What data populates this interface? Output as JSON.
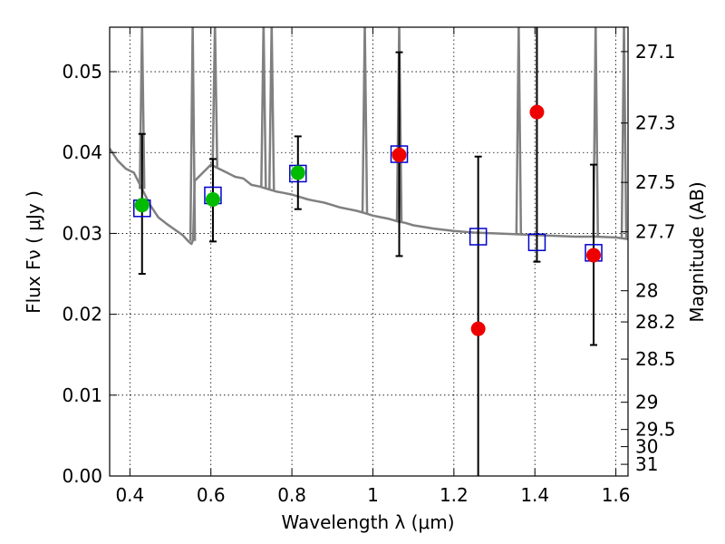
{
  "chart_data": {
    "type": "scatter",
    "xlabel": "Wavelength  λ (μm)",
    "ylabel": "Flux  Fν  ( μJy )",
    "y2label": "Magnitude (AB)",
    "xlim": [
      0.35,
      1.63
    ],
    "ylim": [
      0.0,
      0.0555
    ],
    "grid": true,
    "x_ticks": [
      0.4,
      0.6,
      0.8,
      1.0,
      1.2,
      1.4,
      1.6
    ],
    "x_tick_labels": [
      "0.4",
      "0.6",
      "0.8",
      "1",
      "1.2",
      "1.4",
      "1.6"
    ],
    "y_ticks": [
      0.0,
      0.01,
      0.02,
      0.03,
      0.04,
      0.05
    ],
    "y_tick_labels": [
      "0.00",
      "0.01",
      "0.02",
      "0.03",
      "0.04",
      "0.05"
    ],
    "y2_ticks": [
      "27.1",
      "27.3",
      "27.5",
      "27.7",
      "28",
      "28.2",
      "28.5",
      "29",
      "29.5",
      "30",
      "31"
    ],
    "colors": {
      "model": "#808080",
      "detections": "#00bb00",
      "nondetections": "#ee0000",
      "model_fluxes": "#0000cc",
      "errorbars": "#000000"
    },
    "model_spectrum": {
      "x": [
        0.35,
        0.37,
        0.39,
        0.41,
        0.43,
        0.45,
        0.47,
        0.49,
        0.51,
        0.53,
        0.545,
        0.552,
        0.556,
        0.56,
        0.58,
        0.6,
        0.62,
        0.64,
        0.66,
        0.68,
        0.7,
        0.72,
        0.74,
        0.76,
        0.78,
        0.8,
        0.82,
        0.84,
        0.86,
        0.88,
        0.9,
        0.92,
        0.94,
        0.96,
        0.98,
        1.0,
        1.02,
        1.04,
        1.06,
        1.08,
        1.1,
        1.15,
        1.2,
        1.25,
        1.3,
        1.35,
        1.4,
        1.45,
        1.5,
        1.55,
        1.6,
        1.63
      ],
      "y": [
        0.0405,
        0.039,
        0.038,
        0.0375,
        0.0355,
        0.0335,
        0.032,
        0.0312,
        0.0305,
        0.0298,
        0.029,
        0.0287,
        0.0292,
        0.0365,
        0.0375,
        0.0385,
        0.038,
        0.0375,
        0.037,
        0.0368,
        0.036,
        0.0358,
        0.0355,
        0.0352,
        0.035,
        0.0348,
        0.0345,
        0.0342,
        0.034,
        0.0338,
        0.0335,
        0.0332,
        0.033,
        0.0328,
        0.0325,
        0.0322,
        0.032,
        0.0318,
        0.0315,
        0.0313,
        0.031,
        0.0306,
        0.0303,
        0.0301,
        0.03,
        0.0299,
        0.0298,
        0.0297,
        0.0296,
        0.0296,
        0.0295,
        0.0293
      ]
    },
    "emission_spikes": [
      0.43,
      0.555,
      0.61,
      0.73,
      0.75,
      0.98,
      1.065,
      1.36,
      1.55,
      1.62
    ],
    "model_fluxes": {
      "x": [
        0.43,
        0.605,
        0.815,
        1.065,
        1.26,
        1.405,
        1.545
      ],
      "y": [
        0.0331,
        0.0347,
        0.0374,
        0.0398,
        0.0296,
        0.0289,
        0.0276
      ]
    },
    "observations": [
      {
        "x": 0.43,
        "y": 0.0335,
        "err_low": 0.0085,
        "err_high": 0.0088,
        "detected": true
      },
      {
        "x": 0.605,
        "y": 0.0342,
        "err_low": 0.0052,
        "err_high": 0.005,
        "detected": true
      },
      {
        "x": 0.815,
        "y": 0.0375,
        "err_low": 0.0045,
        "err_high": 0.0045,
        "detected": true
      },
      {
        "x": 1.065,
        "y": 0.0397,
        "err_low": 0.0125,
        "err_high": 0.0127,
        "detected": false
      },
      {
        "x": 1.26,
        "y": 0.0182,
        "err_low": 0.0182,
        "err_high": 0.0213,
        "detected": false
      },
      {
        "x": 1.405,
        "y": 0.045,
        "err_low": 0.0185,
        "err_high": 0.0105,
        "detected": false
      },
      {
        "x": 1.545,
        "y": 0.0273,
        "err_low": 0.0111,
        "err_high": 0.0112,
        "detected": false
      }
    ]
  }
}
